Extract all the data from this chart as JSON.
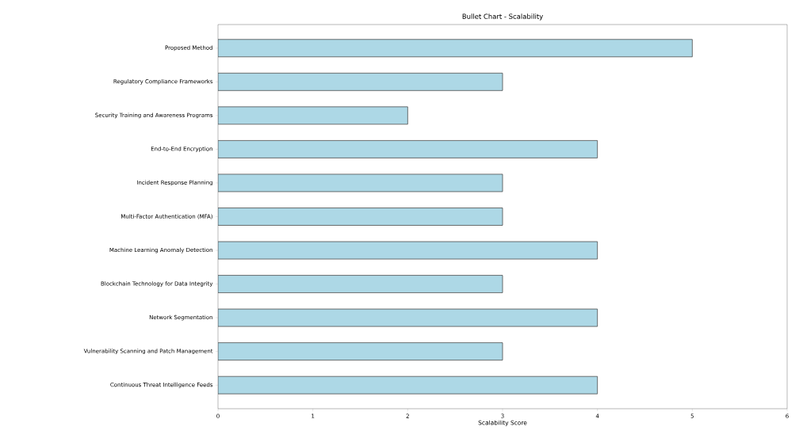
{
  "chart_data": {
    "type": "bar",
    "orientation": "horizontal",
    "title": "Bullet Chart - Scalability",
    "xlabel": "Scalability Score",
    "categories": [
      "Proposed Method",
      "Regulatory Compliance Frameworks",
      "Security Training and Awareness Programs",
      "End-to-End Encryption",
      "Incident Response Planning",
      "Multi-Factor Authentication (MFA)",
      "Machine Learning Anomaly Detection",
      "Blockchain Technology for Data Integrity",
      "Network Segmentation",
      "Vulnerability Scanning and Patch Management",
      "Continuous Threat Intelligence Feeds"
    ],
    "values": [
      5,
      3,
      2,
      4,
      3,
      3,
      4,
      3,
      4,
      3,
      4
    ],
    "color": "#add8e6",
    "xlim": [
      0,
      6
    ],
    "xticks": [
      0,
      1,
      2,
      3,
      4,
      5,
      6
    ],
    "grid": false
  }
}
